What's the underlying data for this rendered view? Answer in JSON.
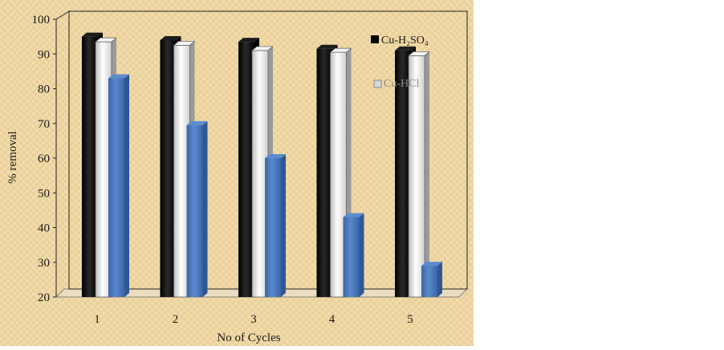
{
  "chart_data": {
    "type": "bar",
    "categories": [
      "1",
      "2",
      "3",
      "4",
      "5"
    ],
    "series": [
      {
        "name": "Cu-H₂SO₄",
        "color": "#000000",
        "values": [
          95,
          94,
          93.5,
          91.5,
          91
        ]
      },
      {
        "name": "Cu-HCl",
        "color": "#e8e8e8",
        "values": [
          93.5,
          92.5,
          91,
          90.5,
          89.5
        ]
      },
      {
        "name": "",
        "color": "#4a78b8",
        "values": [
          83,
          69.5,
          60,
          43,
          29
        ]
      }
    ],
    "title": "",
    "xlabel": "No of Cycles",
    "ylabel": "% removal",
    "ylim": [
      20,
      100
    ],
    "yticks": [
      "20",
      "30",
      "40",
      "50",
      "60",
      "70",
      "80",
      "90",
      "100"
    ],
    "grid": false,
    "legend_position": "right",
    "background": "#f0d9a8"
  }
}
